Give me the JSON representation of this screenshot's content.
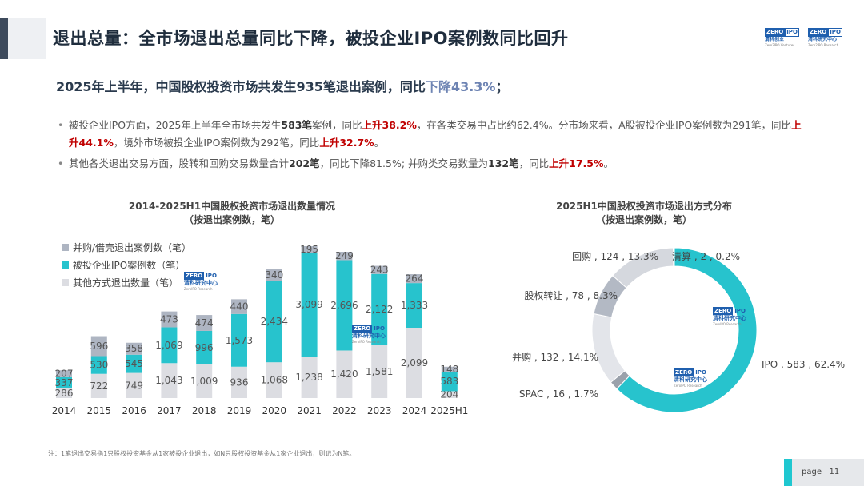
{
  "header": {
    "title": "退出总量：全市场退出总量同比下降，被投企业IPO案例数同比回升",
    "logos": [
      {
        "brand": "ZERO2IPO",
        "name": "清科创业",
        "en": "Zero2IPO Ventures"
      },
      {
        "brand": "ZERO2IPO",
        "name": "清科研究中心",
        "en": "Zero2IPO Research"
      }
    ]
  },
  "subtitle": {
    "text": "2025年上半年，中国股权投资市场共发生935笔退出案例，同比",
    "highlight": "下降43.3%",
    "end": "；"
  },
  "bullets": {
    "b1": {
      "p1": "被投企业IPO方面，2025年上半年全市场共发生",
      "v1": "583笔",
      "p2": "案例，同比",
      "v2": "上升38.2%",
      "p3": "，在各类交易中占比约62.4%。分市场来看，A股被投企业IPO案例数为291笔，同比",
      "v3": "上升44.1%",
      "p4": "，境外市场被投企业IPO案例数为292笔，同比",
      "v4": "上升32.7%",
      "p5": "。"
    },
    "b2": {
      "p1": "其他各类退出交易方面，股转和回购交易数量合计",
      "v1": "202笔",
      "p2": "，同比下降81.5%; 并购类交易数量为",
      "v2": "132笔",
      "p3": "，同比",
      "v3": "上升17.5%",
      "p4": "。"
    }
  },
  "watermark": {
    "brand_a": "ZERO",
    "brand_b": "IPO",
    "name": "清科研究中心",
    "en": "ZeroIPO Research"
  },
  "chart_data": [
    {
      "type": "bar",
      "stacked": true,
      "title": "2014-2025H1中国股权投资市场退出数量情况",
      "subtitle": "（按退出案例数，笔）",
      "categories": [
        "2014",
        "2015",
        "2016",
        "2017",
        "2018",
        "2019",
        "2020",
        "2021",
        "2022",
        "2023",
        "2024",
        "2025H1"
      ],
      "series": [
        {
          "name": "其他方式退出数量（笔）",
          "color": "#dcdde2",
          "values": [
            286,
            722,
            749,
            1043,
            1009,
            936,
            1068,
            1238,
            1420,
            1581,
            2099,
            204
          ]
        },
        {
          "name": "被投企业IPO案例数（笔）",
          "color": "#27c3cd",
          "values": [
            337,
            530,
            545,
            1069,
            996,
            1573,
            2434,
            3099,
            2696,
            2122,
            1333,
            583
          ]
        },
        {
          "name": "并购/借壳退出案例数（笔）",
          "color": "#aeb5c2",
          "values": [
            207,
            596,
            358,
            473,
            474,
            440,
            340,
            195,
            249,
            243,
            264,
            148
          ]
        }
      ],
      "legend": "top-left",
      "grid": false
    },
    {
      "type": "pie",
      "donut": true,
      "title": "2025H1中国股权投资市场退出方式分布",
      "subtitle": "（按退出案例数，笔）",
      "slices": [
        {
          "name": "IPO",
          "value": 583,
          "pct": "62.4%",
          "color": "#27c3cd"
        },
        {
          "name": "SPAC",
          "value": 16,
          "pct": "1.7%",
          "color": "#9aa1ab"
        },
        {
          "name": "并购",
          "value": 132,
          "pct": "14.1%",
          "color": "#e3e5ea"
        },
        {
          "name": "股权转让",
          "value": 78,
          "pct": "8.3%",
          "color": "#b3b9c4"
        },
        {
          "name": "回购",
          "value": 124,
          "pct": "13.3%",
          "color": "#d5d8de"
        },
        {
          "name": "清算",
          "value": 2,
          "pct": "0.2%",
          "color": "#7d8590"
        }
      ]
    }
  ],
  "footnote": "注：1笔退出交易指1只股权投资基金从1家被投企业退出，如N只股权投资基金从1家企业退出，则记为N笔。",
  "page": {
    "label": "page",
    "number": "11"
  }
}
